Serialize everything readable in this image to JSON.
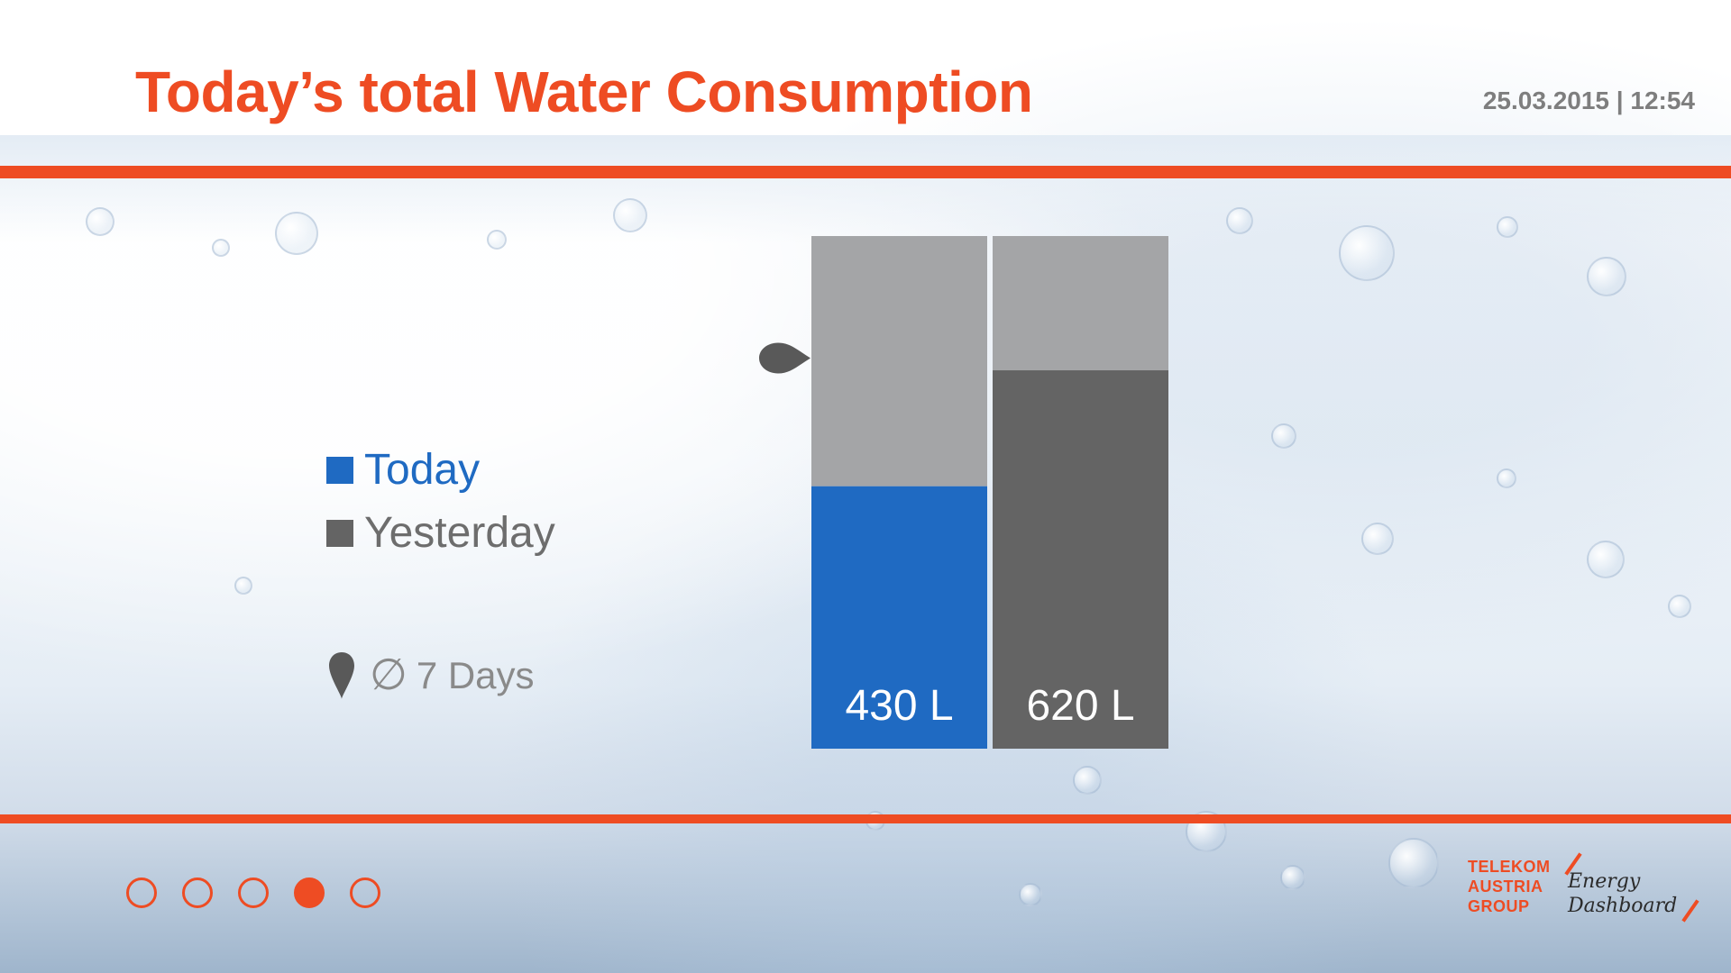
{
  "header": {
    "title": "Today’s total Water Consumption",
    "datetime": "25.03.2015 | 12:54"
  },
  "legend": {
    "today_label": "Today",
    "yesterday_label": "Yesterday",
    "average_symbol": "∅",
    "average_label": "7 Days"
  },
  "chart_data": {
    "type": "bar",
    "categories": [
      "Today",
      "Yesterday"
    ],
    "values": [
      430,
      620
    ],
    "data_labels": [
      "430 L",
      "620 L"
    ],
    "ylim": [
      0,
      840
    ],
    "average_7_days": 640,
    "grid": false,
    "legend_placement": "left",
    "colors": {
      "today": "#1f6ac2",
      "yesterday": "#646464",
      "remainder": "#a4a5a7",
      "marker": "#595959",
      "label": "#ffffff"
    }
  },
  "pagination": {
    "active_index": 3,
    "pages": [
      {
        "label": ""
      },
      {
        "label": ""
      },
      {
        "label": ""
      },
      {
        "label": ""
      },
      {
        "label": ""
      }
    ]
  },
  "brand": {
    "company": "TELEKOM\nAUSTRIA\nGROUP",
    "product": "Energy\nDashboard"
  },
  "icons": {
    "average": "location-pin-icon"
  },
  "colors": {
    "accent": "#ee4c23",
    "muted_text": "#7e7e7e"
  }
}
